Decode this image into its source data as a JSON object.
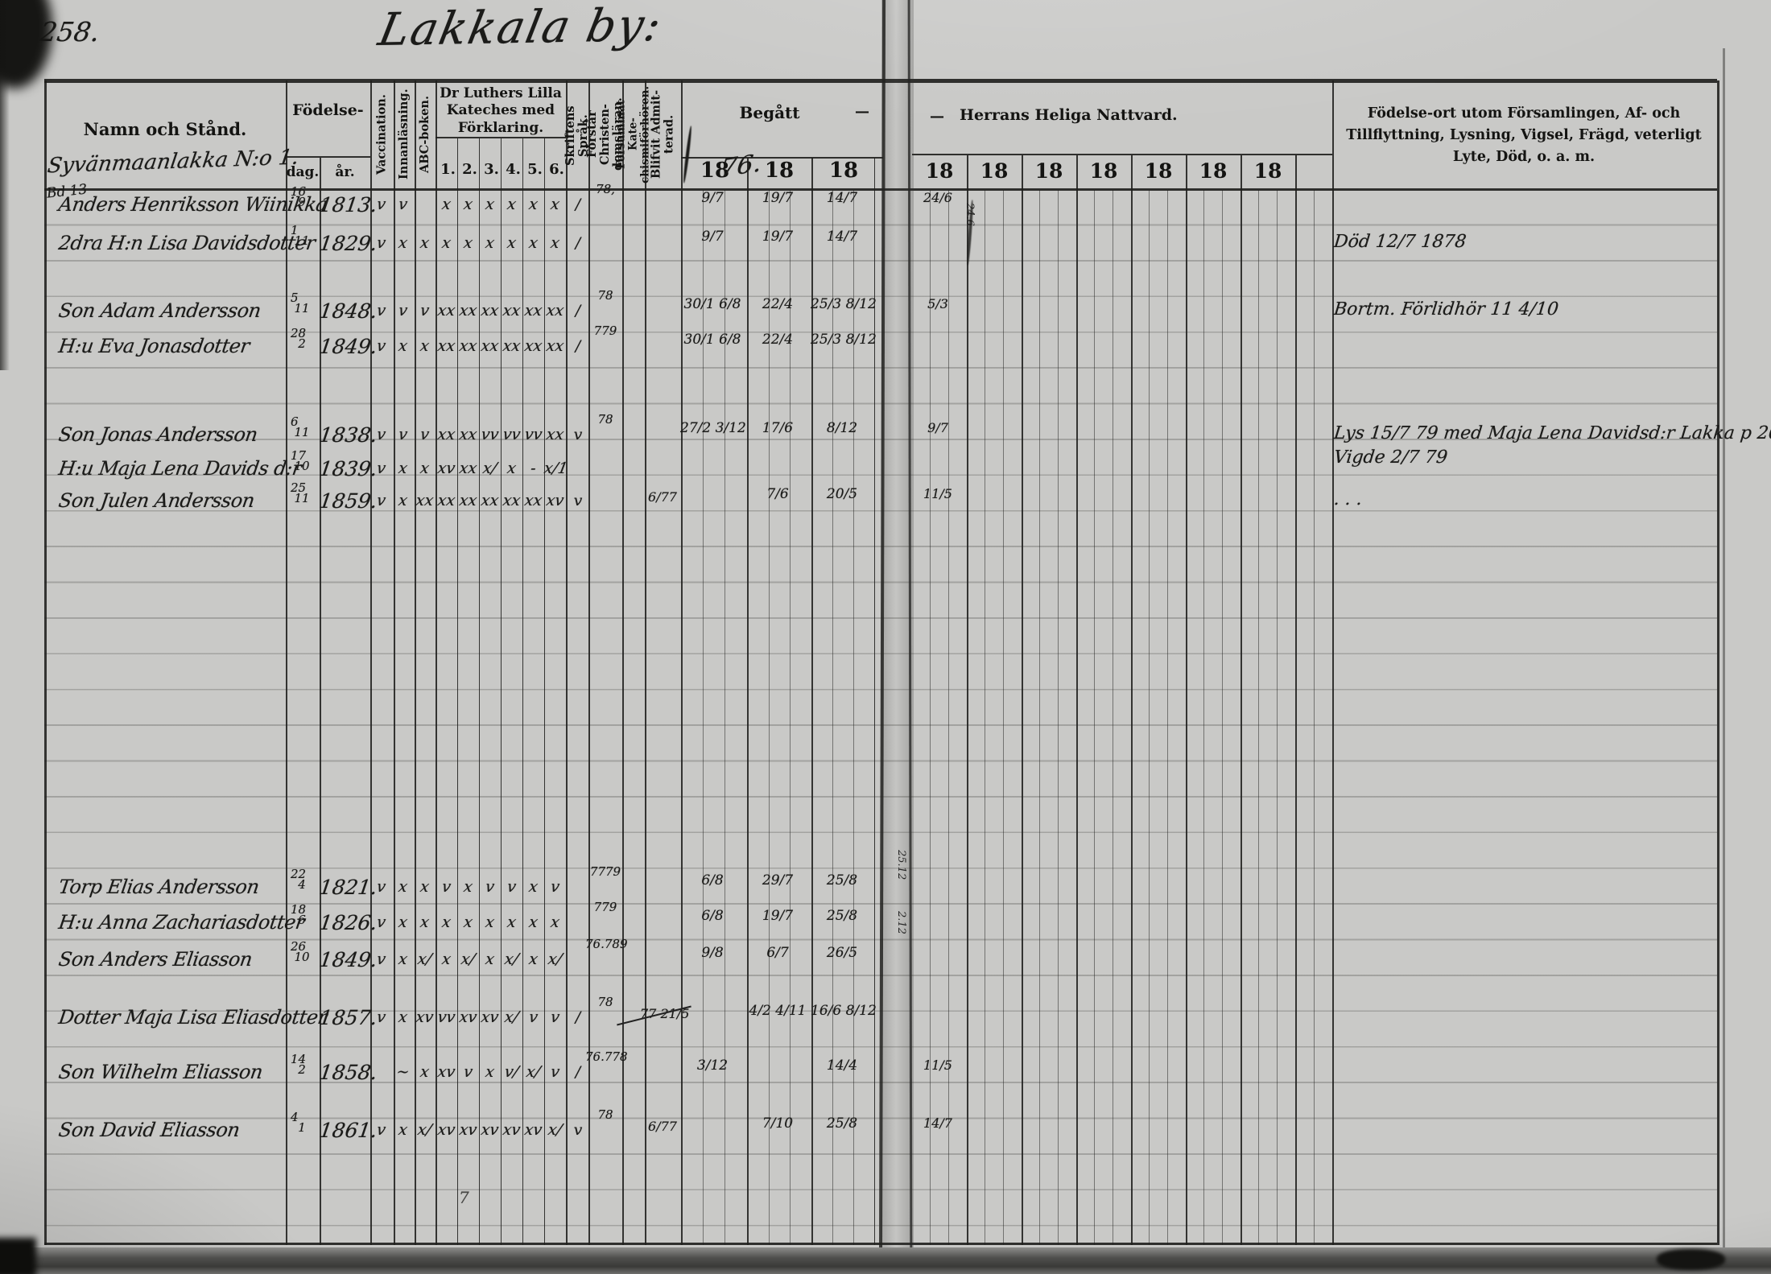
{
  "page": {
    "number": "258.",
    "title": "Lakkala by:"
  },
  "header": {
    "namn_och_stand": "Namn och Stånd.",
    "house_name": "Syvänmaanlakka N:o 1.",
    "fodelse": "Födelse-",
    "dag": "dag.",
    "ar": "år.",
    "vaccination": "Vaccination.",
    "innanlasning": "Innanläsning.",
    "abc_boken": "ABC-boken.",
    "kateches": "Dr Luthers Lilla Kateches med Förklaring.",
    "kateches_cols": [
      "1.",
      "2.",
      "3.",
      "4.",
      "5.",
      "6."
    ],
    "skriftens_sprak": "Skriftens Språk.",
    "forstar": "Förstår Christen- domsläran.",
    "forsummat": "Försummat Kate- chismiförhören.",
    "blifvit": "Blifvit Admit- terad.",
    "begatt": "Begått",
    "begatt_dash": "—",
    "begatt_years": [
      "18",
      "18",
      "18"
    ],
    "begatt_year_hand": "76.",
    "nattvard_dash": "—",
    "nattvard": "Herrans Heliga Nattvard.",
    "nattvard_years": [
      "18",
      "18",
      "18",
      "18",
      "18",
      "18",
      "18"
    ],
    "remarks": "Födelse-ort utom Församlingen, Af- och Tillflyttning, Lysning, Vigsel, Frägd, veterligt Lyte, Död, o. a. m."
  },
  "margin": {
    "top_left": "Bd 13",
    "stray": "7",
    "gutter_mark_1": "24.6",
    "gutter_mark_2": "25.12",
    "gutter_mark_3": "2.12"
  },
  "rows": [
    {
      "name": "Anders Henriksson Wiinikka",
      "day": "16/9",
      "year": "1813.",
      "marks": [
        "v",
        "v",
        "",
        "x",
        "x",
        "x",
        "x",
        "x",
        "x"
      ],
      "skrift": "/",
      "forstar": "78,",
      "beg1": "9/7",
      "beg2": "19/7",
      "beg3": "14/7",
      "natt1": "24/6"
    },
    {
      "name": "2dra H:n Lisa Davidsdotter",
      "day": "1/11",
      "year": "1829.",
      "marks": [
        "v",
        "x",
        "x",
        "x",
        "x",
        "x",
        "x",
        "x",
        "x"
      ],
      "skrift": "/",
      "beg1": "9/7",
      "beg2": "19/7",
      "beg3": "14/7",
      "note": "Död 12/7 1878"
    },
    {
      "name": "Son Adam Andersson",
      "day": "5/11",
      "year": "1848.",
      "marks": [
        "v",
        "v",
        "v",
        "xx",
        "xx",
        "xx",
        "xx",
        "xx",
        "xx"
      ],
      "skrift": "/",
      "forstar": "78",
      "beg1": "30/1 6/8",
      "beg2": "22/4",
      "beg3": "25/3 8/12",
      "natt1": "5/3",
      "note": "Bortm. Förlidhör 11 4/10"
    },
    {
      "name": "H:u Eva Jonasdotter",
      "day": "28/2",
      "year": "1849.",
      "marks": [
        "v",
        "x",
        "x",
        "xx",
        "xx",
        "xx",
        "xx",
        "xx",
        "xx"
      ],
      "skrift": "/",
      "forstar": "779",
      "beg1": "30/1 6/8",
      "beg2": "22/4",
      "beg3": "25/3 8/12"
    },
    {
      "name": "Son Jonas Andersson",
      "day": "6/11",
      "year": "1838.",
      "marks": [
        "v",
        "v",
        "v",
        "xx",
        "xx",
        "vv",
        "vv",
        "vv",
        "xx"
      ],
      "skrift": "v",
      "forstar": "78",
      "beg1": "27/2 3/12",
      "beg2": "17/6",
      "beg3": "8/12",
      "natt1": "9/7",
      "note": "Lys 15/7 79 med Maja Lena Davidsd:r Lakka p 262",
      "note2": "Vigde 2/7 79"
    },
    {
      "name": "H:u Maja Lena Davids d:r",
      "day": "17/10",
      "year": "1839.",
      "marks": [
        "v",
        "x",
        "x",
        "xv",
        "xx",
        "x/",
        "x",
        "-",
        "x/1"
      ]
    },
    {
      "name": "Son Julen Andersson",
      "day": "25/11",
      "year": "1859.",
      "marks": [
        "v",
        "x",
        "xx",
        "xx",
        "xx",
        "xx",
        "xx",
        "xx",
        "xv"
      ],
      "skrift": "v",
      "adm": "6/77",
      "beg2": "7/6",
      "beg3": "20/5",
      "natt1": "11/5",
      "note": ". . ."
    },
    {
      "name": "Torp Elias Andersson",
      "day": "22/4",
      "year": "1821.",
      "marks": [
        "v",
        "x",
        "x",
        "v",
        "x",
        "v",
        "v",
        "x",
        "v"
      ],
      "forstar": "7779",
      "beg1": "6/8",
      "beg2": "29/7",
      "beg3": "25/8"
    },
    {
      "name": "H:u Anna Zachariasdotter",
      "day": "18/6",
      "year": "1826.",
      "marks": [
        "v",
        "x",
        "x",
        "x",
        "x",
        "x",
        "x",
        "x",
        "x"
      ],
      "forstar": "779",
      "beg1": "6/8",
      "beg2": "19/7",
      "beg3": "25/8"
    },
    {
      "name": "Son Anders Eliasson",
      "day": "26/10",
      "year": "1849.",
      "marks": [
        "v",
        "x",
        "x/",
        "x",
        "x/",
        "x",
        "x/",
        "x",
        "x/"
      ],
      "forstar": "76.789",
      "beg1": "9/8",
      "beg2": "6/7",
      "beg3": "26/5"
    },
    {
      "name": "Dotter Maja Lisa Eliasdotter",
      "day": "",
      "year": "1857.",
      "marks": [
        "v",
        "x",
        "xv",
        "vv",
        "xv",
        "xv",
        "x/",
        "v",
        "v"
      ],
      "skrift": "/",
      "forstar": "78",
      "adm": "77 21/5",
      "beg2": "4/2 4/11",
      "beg3": "16/6 8/12"
    },
    {
      "name": "Son Wilhelm Eliasson",
      "day": "14/2",
      "year": "1858.",
      "marks": [
        "",
        "~",
        "x",
        "xv",
        "v",
        "x",
        "v/",
        "x/",
        "v"
      ],
      "skrift": "/",
      "forstar": "76.778",
      "beg1": "3/12",
      "beg3": "14/4",
      "natt1": "11/5"
    },
    {
      "name": "Son David Eliasson",
      "day": "4/1",
      "year": "1861.",
      "marks": [
        "v",
        "x",
        "x/",
        "xv",
        "xv",
        "xv",
        "xv",
        "xv",
        "x/"
      ],
      "skrift": "v",
      "forstar": "78",
      "adm": "6/77",
      "beg2": "7/10",
      "beg3": "25/8",
      "natt1": "14/7"
    }
  ]
}
